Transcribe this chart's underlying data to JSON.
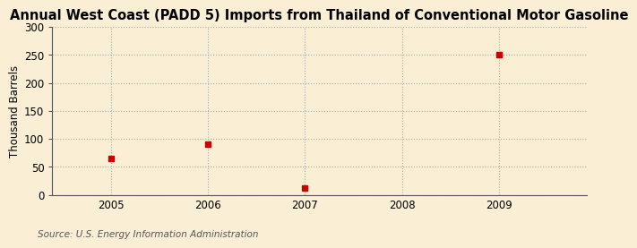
{
  "title": "Annual West Coast (PADD 5) Imports from Thailand of Conventional Motor Gasoline",
  "ylabel": "Thousand Barrels",
  "source": "Source: U.S. Energy Information Administration",
  "years": [
    2005,
    2006,
    2007,
    2008,
    2009
  ],
  "values": [
    65,
    90,
    13,
    0,
    251
  ],
  "has_point": [
    true,
    true,
    true,
    false,
    true
  ],
  "xlim": [
    2004.4,
    2009.9
  ],
  "ylim": [
    0,
    300
  ],
  "yticks": [
    0,
    50,
    100,
    150,
    200,
    250,
    300
  ],
  "xticks": [
    2005,
    2006,
    2007,
    2008,
    2009
  ],
  "marker_color": "#cc0000",
  "marker_size": 4,
  "background_color": "#faefd4",
  "grid_color": "#aaaaaa",
  "title_fontsize": 10.5,
  "label_fontsize": 8.5,
  "tick_fontsize": 8.5,
  "source_fontsize": 7.5
}
